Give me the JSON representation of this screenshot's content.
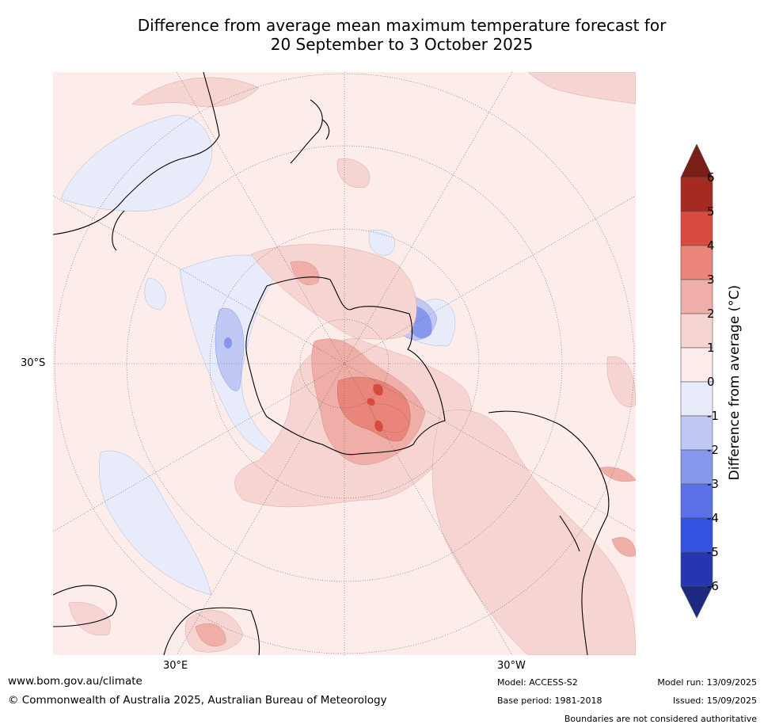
{
  "title_line1": "Difference from average mean maximum temperature forecast for",
  "title_line2": "20 September to 3 October 2025",
  "map": {
    "lat_label": "30°S",
    "lon_labels": [
      "30°E",
      "30°W"
    ]
  },
  "colorbar": {
    "label": "Difference from average (°C)",
    "ticks": [
      "6",
      "5",
      "4",
      "3",
      "2",
      "1",
      "0",
      "-1",
      "-2",
      "-3",
      "-4",
      "-5",
      "-6"
    ],
    "colors": {
      "above_6": "#7a1f18",
      "5_6": "#a52b22",
      "4_5": "#d84b3e",
      "3_4": "#e9857a",
      "2_3": "#efafa8",
      "1_2": "#f6d4d1",
      "0_1": "#fcecea",
      "m1_0": "#e7ebfa",
      "m2_m1": "#c0c8f3",
      "m3_m2": "#8797ec",
      "m4_m3": "#5a70e6",
      "m5_m4": "#3452e0",
      "m6_m5": "#2436b0",
      "below_m6": "#1c2a80"
    }
  },
  "footer": {
    "website": "www.bom.gov.au/climate",
    "copyright": "© Commonwealth of Australia 2025, Australian Bureau of Meteorology",
    "model": "Model: ACCESS-S2",
    "base_period": "Base period: 1981-2018",
    "model_run": "Model run: 13/09/2025",
    "issued": "Issued: 15/09/2025",
    "disclaimer": "Boundaries are not considered authoritative"
  }
}
